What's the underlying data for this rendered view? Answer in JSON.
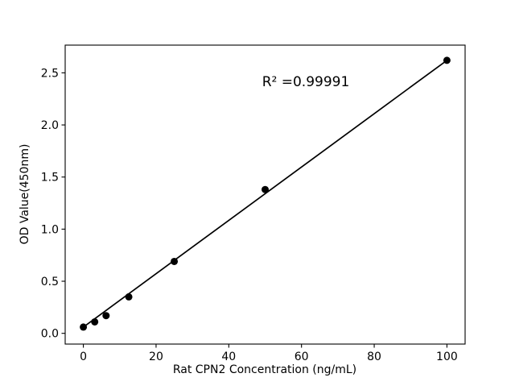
{
  "chart_data": {
    "type": "scatter",
    "title": "",
    "xlabel": "Rat CPN2 Concentration (ng/mL)",
    "ylabel": "OD Value(450nm)",
    "annotation": "R² =0.99991",
    "x": [
      0,
      3.125,
      6.25,
      12.5,
      25,
      50,
      100
    ],
    "y": [
      0.06,
      0.11,
      0.17,
      0.35,
      0.69,
      1.38,
      2.62
    ],
    "fit_line": {
      "x1": 0,
      "y1": 0.06,
      "x2": 100,
      "y2": 2.62
    },
    "xlim": [
      -5,
      105
    ],
    "ylim": [
      -0.103,
      2.766
    ],
    "xticks": [
      0,
      20,
      40,
      60,
      80,
      100
    ],
    "xtick_labels": [
      "0",
      "20",
      "40",
      "60",
      "80",
      "100"
    ],
    "yticks": [
      0.0,
      0.5,
      1.0,
      1.5,
      2.0,
      2.5
    ],
    "ytick_labels": [
      "0.0",
      "0.5",
      "1.0",
      "1.5",
      "2.0",
      "2.5"
    ],
    "grid": false,
    "legend": null,
    "marker_color": "#000000",
    "line_color": "#000000",
    "axis_color": "#000000",
    "background": "#ffffff"
  }
}
